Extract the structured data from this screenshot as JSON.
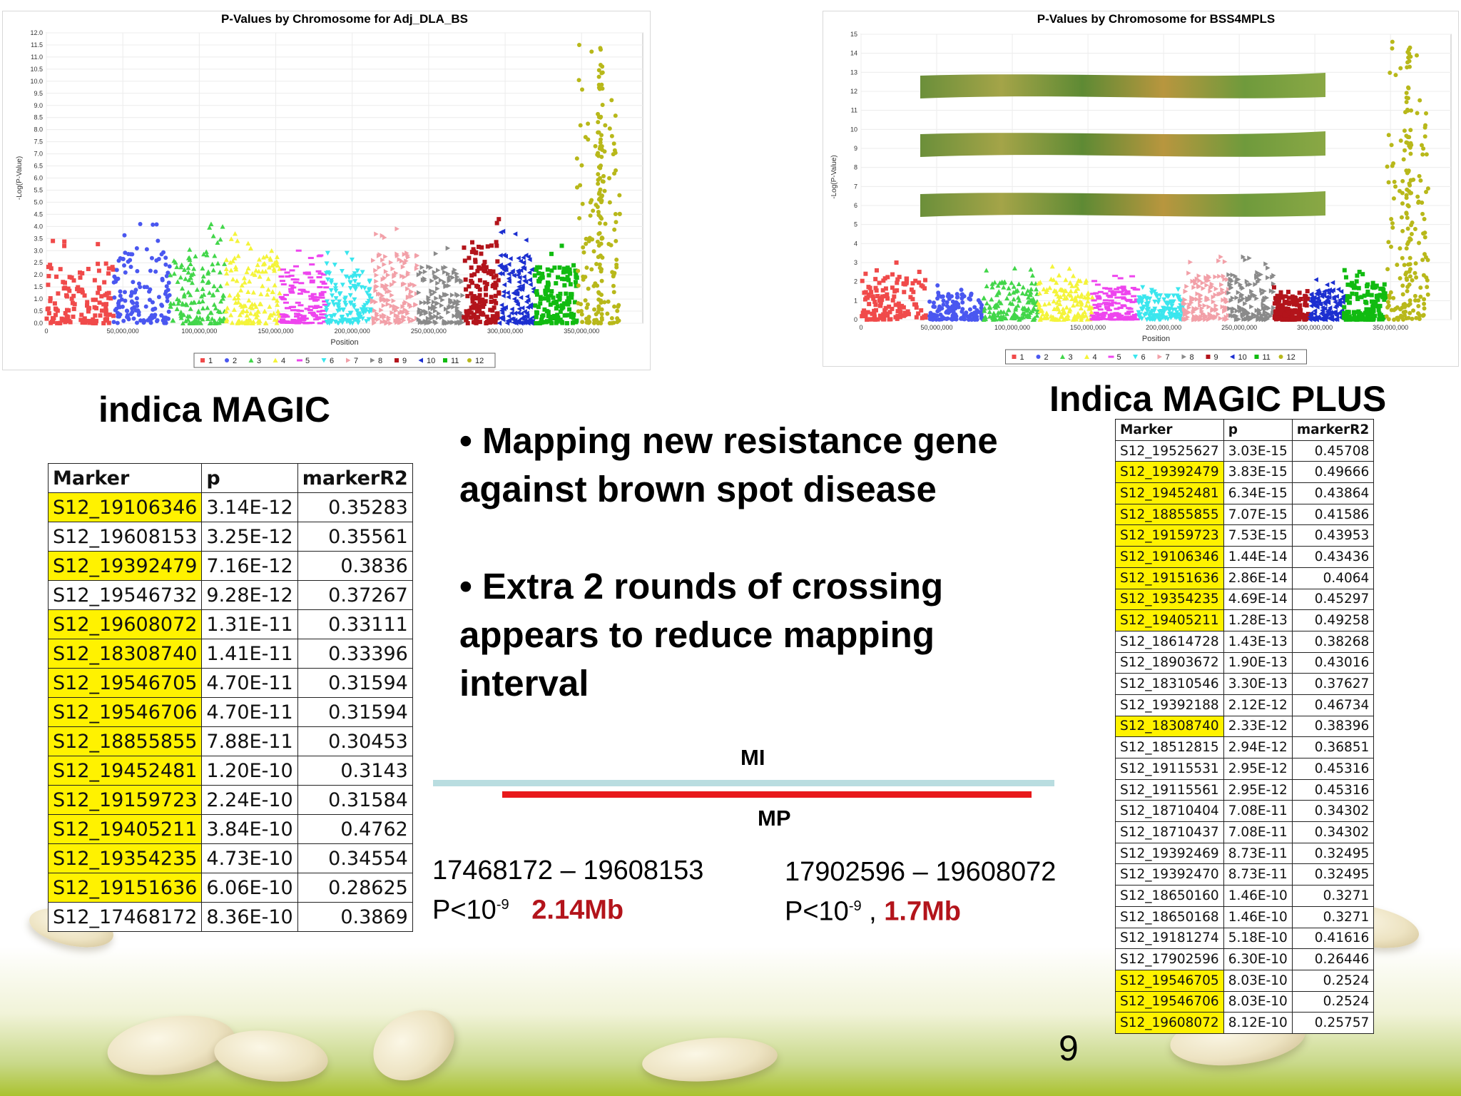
{
  "plot_left": {
    "title": "P-Values by Chromosome for Adj_DLA_BS",
    "xlabel": "Position",
    "ylabel": "-Log(P-Value)",
    "yticks": [
      "0.0",
      "0.5",
      "1.0",
      "1.5",
      "2.0",
      "2.5",
      "3.0",
      "3.5",
      "4.0",
      "4.5",
      "5.0",
      "5.5",
      "6.0",
      "6.5",
      "7.0",
      "7.5",
      "8.0",
      "8.5",
      "9.0",
      "9.5",
      "10.0",
      "10.5",
      "11.0",
      "11.5",
      "12.0"
    ],
    "xticks": [
      "0",
      "50,000,000",
      "100,000,000",
      "150,000,000",
      "200,000,000",
      "250,000,000",
      "300,000,000",
      "350,000,000"
    ],
    "legend": [
      "1",
      "2",
      "3",
      "4",
      "5",
      "6",
      "7",
      "8",
      "9",
      "10",
      "11",
      "12"
    ]
  },
  "plot_right": {
    "title": "P-Values by Chromosome for BSS4MPLS",
    "xlabel": "Position",
    "ylabel": "-Log(P-Value)",
    "yticks": [
      "0",
      "1",
      "2",
      "3",
      "4",
      "5",
      "6",
      "7",
      "8",
      "9",
      "10",
      "11",
      "12",
      "13",
      "14",
      "15"
    ],
    "xticks": [
      "0",
      "50,000,000",
      "100,000,000",
      "150,000,000",
      "200,000,000",
      "250,000,000",
      "300,000,000",
      "350,000,000"
    ],
    "legend": [
      "1",
      "2",
      "3",
      "4",
      "5",
      "6",
      "7",
      "8",
      "9",
      "10",
      "11",
      "12"
    ]
  },
  "chart_data": [
    {
      "type": "scatter",
      "title": "P-Values by Chromosome for Adj_DLA_BS",
      "xlabel": "Position",
      "ylabel": "-Log(P-Value)",
      "ylim": [
        0,
        12
      ],
      "xlim": [
        0,
        390000000
      ],
      "legend_position": "bottom",
      "series": [
        {
          "name": "1",
          "color": "#f04a4a",
          "range": [
            0,
            44000000
          ],
          "max": 3.4
        },
        {
          "name": "2",
          "color": "#4a57f0",
          "range": [
            44000000,
            81000000
          ],
          "max": 4.1
        },
        {
          "name": "3",
          "color": "#42d64a",
          "range": [
            81000000,
            117000000
          ],
          "max": 4.1
        },
        {
          "name": "4",
          "color": "#f4f43a",
          "range": [
            117000000,
            153000000
          ],
          "max": 3.7
        },
        {
          "name": "5",
          "color": "#ee44ee",
          "range": [
            153000000,
            183000000
          ],
          "max": 3.0
        },
        {
          "name": "6",
          "color": "#3ae6ee",
          "range": [
            183000000,
            213000000
          ],
          "max": 2.9
        },
        {
          "name": "7",
          "color": "#f2a0a8",
          "range": [
            213000000,
            243000000
          ],
          "max": 3.9
        },
        {
          "name": "8",
          "color": "#8a8a8a",
          "range": [
            243000000,
            273000000
          ],
          "max": 3.1
        },
        {
          "name": "9",
          "color": "#b3141b",
          "range": [
            273000000,
            296000000
          ],
          "max": 4.3
        },
        {
          "name": "10",
          "color": "#1c2fd0",
          "range": [
            296000000,
            319000000
          ],
          "max": 3.8
        },
        {
          "name": "11",
          "color": "#11bb11",
          "range": [
            319000000,
            347000000
          ],
          "max": 3.2
        },
        {
          "name": "12",
          "color": "#b8b81a",
          "range": [
            347000000,
            375000000
          ],
          "max": 11.5
        }
      ]
    },
    {
      "type": "scatter",
      "title": "P-Values by Chromosome for BSS4MPLS",
      "xlabel": "Position",
      "ylabel": "-Log(P-Value)",
      "ylim": [
        0,
        15
      ],
      "xlim": [
        0,
        390000000
      ],
      "legend_position": "bottom",
      "series": [
        {
          "name": "1",
          "color": "#f04a4a",
          "range": [
            0,
            44000000
          ],
          "max": 3.0
        },
        {
          "name": "2",
          "color": "#4a57f0",
          "range": [
            44000000,
            81000000
          ],
          "max": 1.8
        },
        {
          "name": "3",
          "color": "#42d64a",
          "range": [
            81000000,
            117000000
          ],
          "max": 2.7
        },
        {
          "name": "4",
          "color": "#f4f43a",
          "range": [
            117000000,
            153000000
          ],
          "max": 2.8
        },
        {
          "name": "5",
          "color": "#ee44ee",
          "range": [
            153000000,
            183000000
          ],
          "max": 2.3
        },
        {
          "name": "6",
          "color": "#3ae6ee",
          "range": [
            183000000,
            213000000
          ],
          "max": 1.7
        },
        {
          "name": "7",
          "color": "#f2a0a8",
          "range": [
            213000000,
            243000000
          ],
          "max": 3.3
        },
        {
          "name": "8",
          "color": "#8a8a8a",
          "range": [
            243000000,
            273000000
          ],
          "max": 3.3
        },
        {
          "name": "9",
          "color": "#b3141b",
          "range": [
            273000000,
            296000000
          ],
          "max": 1.7
        },
        {
          "name": "10",
          "color": "#1c2fd0",
          "range": [
            296000000,
            319000000
          ],
          "max": 2.1
        },
        {
          "name": "11",
          "color": "#11bb11",
          "range": [
            319000000,
            347000000
          ],
          "max": 2.6
        },
        {
          "name": "12",
          "color": "#b8b81a",
          "range": [
            347000000,
            375000000
          ],
          "max": 14.6
        }
      ]
    },
    {
      "type": "table",
      "title": "indica MAGIC",
      "columns": [
        "Marker",
        "p",
        "markerR2"
      ],
      "rows": [
        [
          "S12_19106346",
          "3.14E-12",
          "0.35283"
        ],
        [
          "S12_19608153",
          "3.25E-12",
          "0.35561"
        ],
        [
          "S12_19392479",
          "7.16E-12",
          "0.3836"
        ],
        [
          "S12_19546732",
          "9.28E-12",
          "0.37267"
        ],
        [
          "S12_19608072",
          "1.31E-11",
          "0.33111"
        ],
        [
          "S12_18308740",
          "1.41E-11",
          "0.33396"
        ],
        [
          "S12_19546705",
          "4.70E-11",
          "0.31594"
        ],
        [
          "S12_19546706",
          "4.70E-11",
          "0.31594"
        ],
        [
          "S12_18855855",
          "7.88E-11",
          "0.30453"
        ],
        [
          "S12_19452481",
          "1.20E-10",
          "0.3143"
        ],
        [
          "S12_19159723",
          "2.24E-10",
          "0.31584"
        ],
        [
          "S12_19405211",
          "3.84E-10",
          "0.4762"
        ],
        [
          "S12_19354235",
          "4.73E-10",
          "0.34554"
        ],
        [
          "S12_19151636",
          "6.06E-10",
          "0.28625"
        ],
        [
          "S12_17468172",
          "8.36E-10",
          "0.3869"
        ]
      ],
      "highlighted": [
        true,
        false,
        true,
        false,
        true,
        true,
        true,
        true,
        true,
        true,
        true,
        true,
        true,
        true,
        false
      ]
    },
    {
      "type": "table",
      "title": "Indica MAGIC PLUS",
      "columns": [
        "Marker",
        "p",
        "markerR2"
      ],
      "rows": [
        [
          "S12_19525627",
          "3.03E-15",
          "0.45708"
        ],
        [
          "S12_19392479",
          "3.83E-15",
          "0.49666"
        ],
        [
          "S12_19452481",
          "6.34E-15",
          "0.43864"
        ],
        [
          "S12_18855855",
          "7.07E-15",
          "0.41586"
        ],
        [
          "S12_19159723",
          "7.53E-15",
          "0.43953"
        ],
        [
          "S12_19106346",
          "1.44E-14",
          "0.43436"
        ],
        [
          "S12_19151636",
          "2.86E-14",
          "0.4064"
        ],
        [
          "S12_19354235",
          "4.69E-14",
          "0.45297"
        ],
        [
          "S12_19405211",
          "1.28E-13",
          "0.49258"
        ],
        [
          "S12_18614728",
          "1.43E-13",
          "0.38268"
        ],
        [
          "S12_18903672",
          "1.90E-13",
          "0.43016"
        ],
        [
          "S12_18310546",
          "3.30E-13",
          "0.37627"
        ],
        [
          "S12_19392188",
          "2.12E-12",
          "0.46734"
        ],
        [
          "S12_18308740",
          "2.33E-12",
          "0.38396"
        ],
        [
          "S12_18512815",
          "2.94E-12",
          "0.36851"
        ],
        [
          "S12_19115531",
          "2.95E-12",
          "0.45316"
        ],
        [
          "S12_19115561",
          "2.95E-12",
          "0.45316"
        ],
        [
          "S12_18710404",
          "7.08E-11",
          "0.34302"
        ],
        [
          "S12_18710437",
          "7.08E-11",
          "0.34302"
        ],
        [
          "S12_19392469",
          "8.73E-11",
          "0.32495"
        ],
        [
          "S12_19392470",
          "8.73E-11",
          "0.32495"
        ],
        [
          "S12_18650160",
          "1.46E-10",
          "0.3271"
        ],
        [
          "S12_18650168",
          "1.46E-10",
          "0.3271"
        ],
        [
          "S12_19181274",
          "5.18E-10",
          "0.41616"
        ],
        [
          "S12_17902596",
          "6.30E-10",
          "0.26446"
        ],
        [
          "S12_19546705",
          "8.03E-10",
          "0.2524"
        ],
        [
          "S12_19546706",
          "8.03E-10",
          "0.2524"
        ],
        [
          "S12_19608072",
          "8.12E-10",
          "0.25757"
        ]
      ],
      "highlighted": [
        false,
        true,
        true,
        true,
        true,
        true,
        true,
        true,
        true,
        false,
        false,
        false,
        false,
        true,
        false,
        false,
        false,
        false,
        false,
        false,
        false,
        false,
        false,
        false,
        false,
        true,
        true,
        true
      ]
    }
  ],
  "left_heading": "indica MAGIC",
  "right_heading": "Indica MAGIC PLUS",
  "bullets": [
    "•   Mapping new resistance gene against  brown spot disease",
    "• Extra 2 rounds of crossing appears to reduce mapping interval"
  ],
  "interval": {
    "mi_label": "MI",
    "mp_label": "MP",
    "mi_color": "#b9dde0",
    "mp_color": "#e8191b",
    "left_range": "17468172 – 19608153",
    "left_p": "P<10",
    "left_exp": "-9",
    "left_size": "2.14Mb",
    "right_range": "17902596 – 19608072",
    "right_p": "P<10",
    "right_exp": "-9",
    "right_sep": " , ",
    "right_size": "1.7Mb"
  },
  "page_number": "9"
}
